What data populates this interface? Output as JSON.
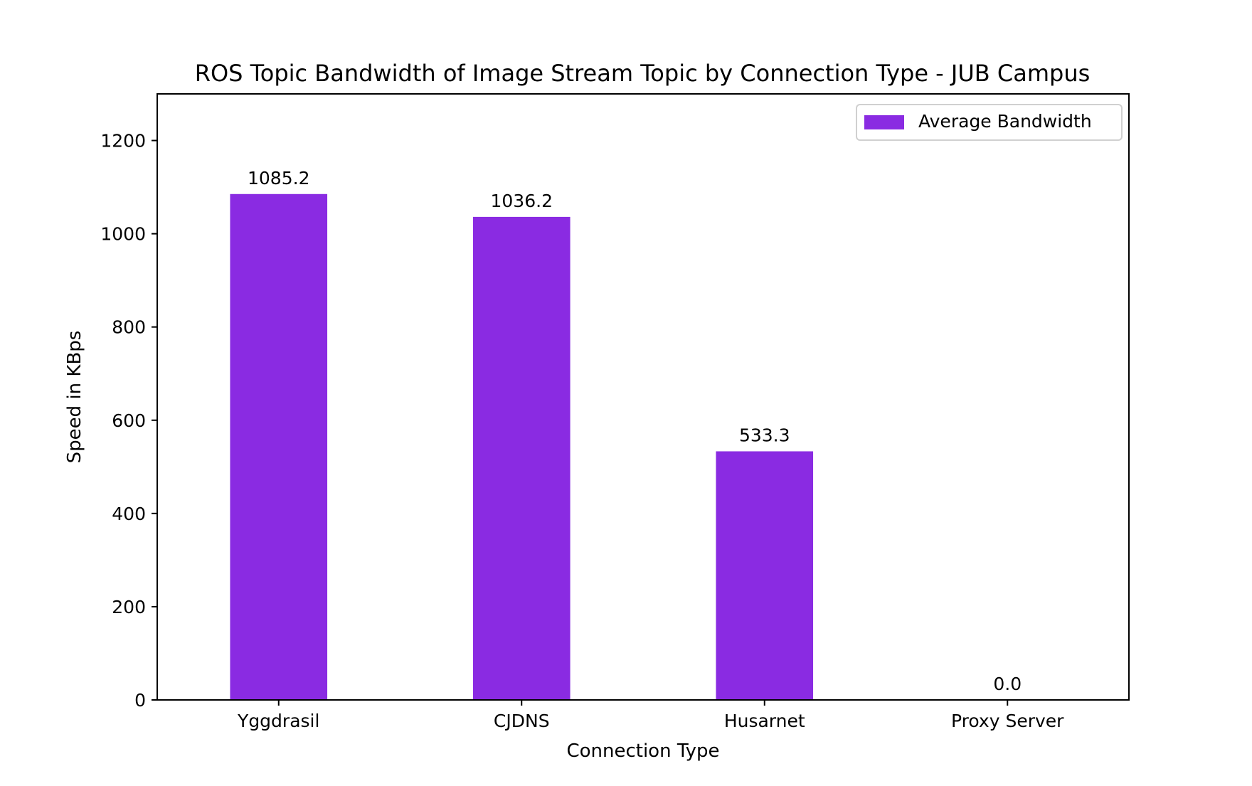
{
  "chart_data": {
    "type": "bar",
    "title": "ROS Topic Bandwidth of Image Stream Topic by Connection Type - JUB Campus",
    "xlabel": "Connection Type",
    "ylabel": "Speed in KBps",
    "categories": [
      "Yggdrasil",
      "CJDNS",
      "Husarnet",
      "Proxy Server"
    ],
    "series": [
      {
        "name": "Average Bandwidth",
        "values": [
          1085.2,
          1036.2,
          533.3,
          0.0
        ],
        "color": "#8a2be2"
      }
    ],
    "data_labels": [
      "1085.2",
      "1036.2",
      "533.3",
      "0.0"
    ],
    "ylim": [
      0,
      1300
    ],
    "yticks": [
      0,
      200,
      400,
      600,
      800,
      1000,
      1200
    ],
    "ytick_labels": [
      "0",
      "200",
      "400",
      "600",
      "800",
      "1000",
      "1200"
    ],
    "grid": false,
    "legend": {
      "position": "top-right",
      "label": "Average Bandwidth"
    }
  }
}
